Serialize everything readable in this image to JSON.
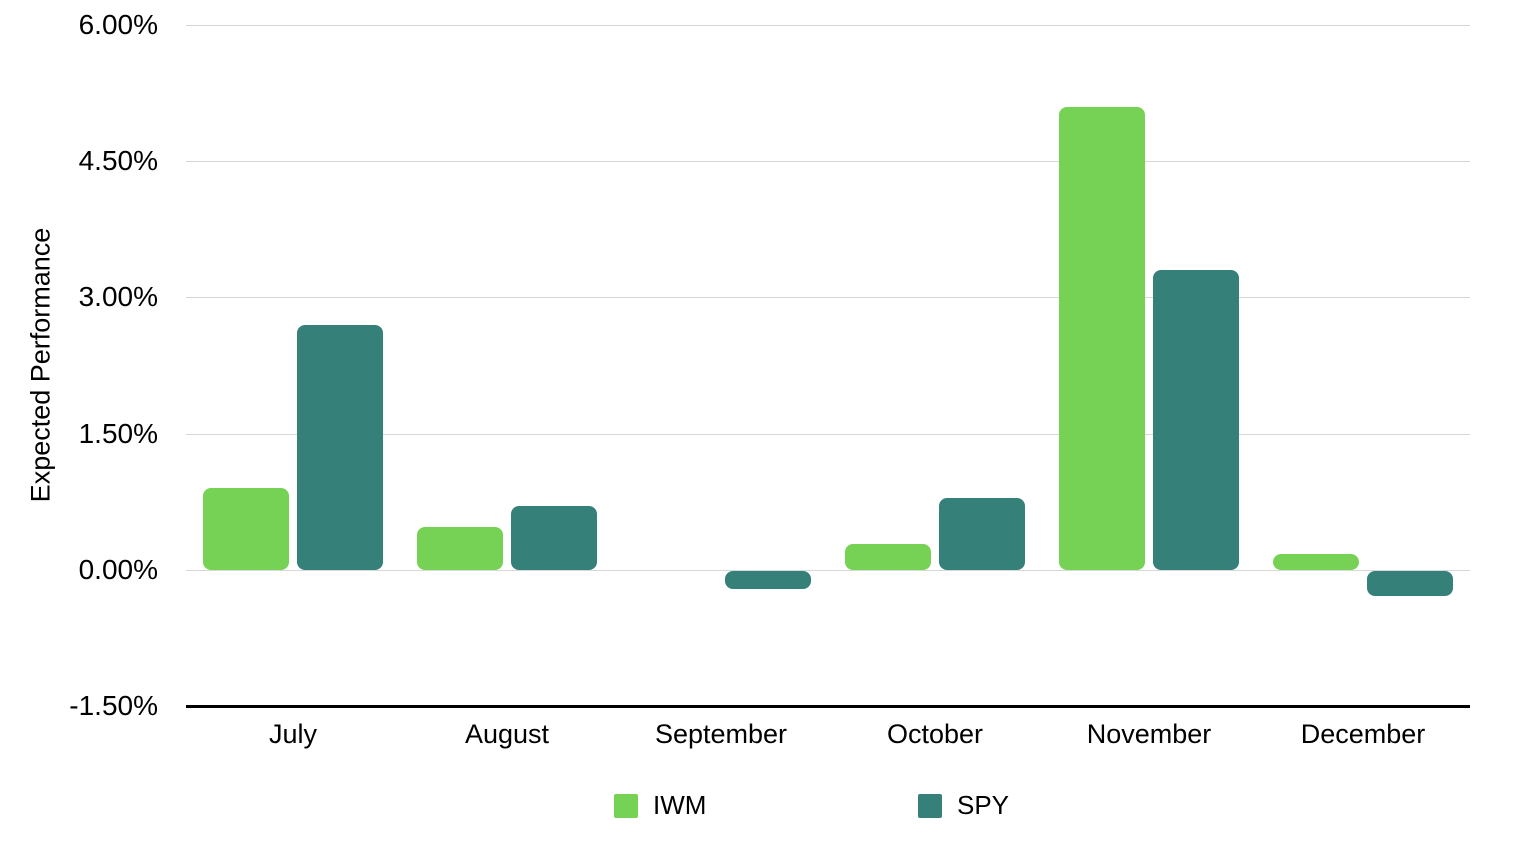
{
  "chart_data": {
    "type": "bar",
    "title": "",
    "categories": [
      "July",
      "August",
      "September",
      "October",
      "November",
      "December"
    ],
    "series": [
      {
        "name": "IWM",
        "color": "#75D254",
        "values": [
          0.9,
          0.47,
          0,
          0.28,
          5.1,
          0.17
        ]
      },
      {
        "name": "SPY",
        "color": "#36807A",
        "values": [
          2.7,
          0.7,
          -0.2,
          0.79,
          3.3,
          -0.27
        ]
      }
    ],
    "xlabel": "",
    "ylabel": "Expected Performance",
    "unit": "%",
    "ylim": [
      -1.5,
      6
    ],
    "y_ticks": [
      {
        "value": 6,
        "label": "6.00%"
      },
      {
        "value": 4.5,
        "label": "4.50%"
      },
      {
        "value": 3,
        "label": "3.00%"
      },
      {
        "value": 1.5,
        "label": "1.50%"
      },
      {
        "value": 0,
        "label": "0.00%"
      },
      {
        "value": -1.5,
        "label": "-1.50%"
      }
    ],
    "grid": true,
    "legend_position": "bottom"
  },
  "colors": {
    "grid": "#d7d7d7",
    "axis": "#000000",
    "text": "#000000",
    "background": "#ffffff"
  }
}
